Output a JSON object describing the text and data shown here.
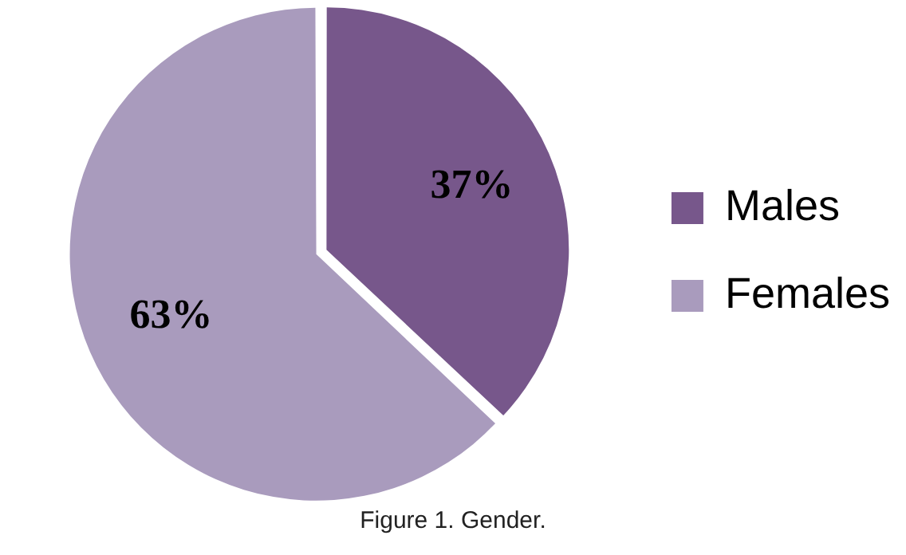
{
  "chart_data": {
    "type": "pie",
    "categories": [
      "Males",
      "Females"
    ],
    "values": [
      37,
      63
    ],
    "colors": [
      "#77578b",
      "#a99bbd"
    ],
    "value_labels": [
      "37%",
      "63%"
    ],
    "legend": "right",
    "annotations": [
      "Figure 1. Gender."
    ]
  }
}
